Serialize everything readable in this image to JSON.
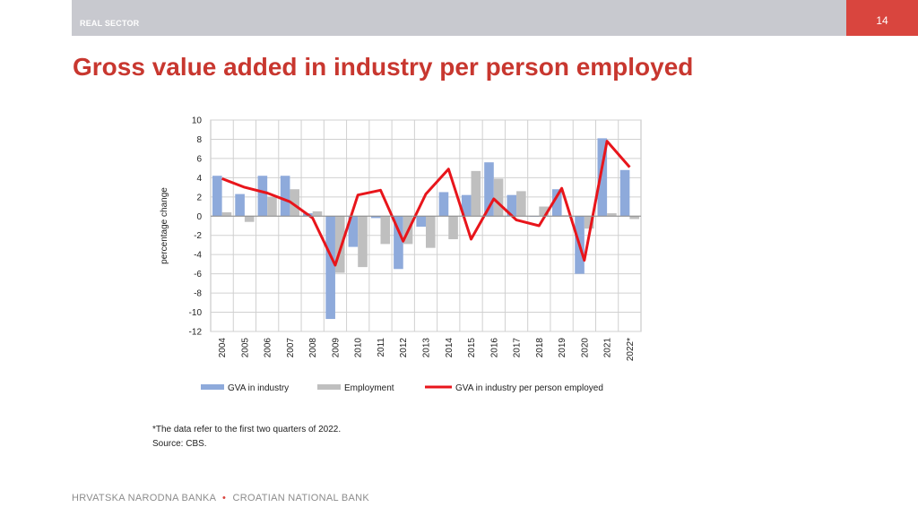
{
  "header": {
    "section_label": "REAL SECTOR",
    "page_number": "14"
  },
  "title": "Gross value added in industry per person employed",
  "chart_data": {
    "type": "bar",
    "ylabel": "percentage change",
    "xlabel": "",
    "ylim": [
      -12,
      10
    ],
    "yticks": [
      10,
      8,
      6,
      4,
      2,
      0,
      -2,
      -4,
      -6,
      -8,
      -10,
      -12
    ],
    "grid": true,
    "legend_position": "bottom",
    "categories": [
      "2004",
      "2005",
      "2006",
      "2007",
      "2008",
      "2009",
      "2010",
      "2011",
      "2012",
      "2013",
      "2014",
      "2015",
      "2016",
      "2017",
      "2018",
      "2019",
      "2020",
      "2021",
      "2022*"
    ],
    "series": [
      {
        "name": "GVA in industry",
        "kind": "bar",
        "color": "#8eaadb",
        "values": [
          4.2,
          2.3,
          4.2,
          4.2,
          0.3,
          -10.7,
          -3.2,
          -0.2,
          -5.5,
          -1.1,
          2.5,
          2.2,
          5.6,
          2.2,
          0.0,
          2.8,
          -6.0,
          8.1,
          4.8
        ]
      },
      {
        "name": "Employment",
        "kind": "bar",
        "color": "#bfbfbf",
        "values": [
          0.4,
          -0.6,
          2.0,
          2.8,
          0.5,
          -5.9,
          -5.3,
          -2.9,
          -2.9,
          -3.3,
          -2.4,
          4.7,
          3.9,
          2.6,
          1.0,
          0.1,
          -1.3,
          0.3,
          -0.3
        ]
      },
      {
        "name": "GVA in industry per person employed",
        "kind": "line",
        "color": "#e8151b",
        "values": [
          3.9,
          3.0,
          2.4,
          1.5,
          -0.2,
          -5.1,
          2.2,
          2.7,
          -2.6,
          2.3,
          4.9,
          -2.4,
          1.8,
          -0.4,
          -1.0,
          2.9,
          -4.6,
          7.8,
          5.1
        ]
      }
    ]
  },
  "notes": {
    "footnote": "*The data refer to the first two quarters of 2022.",
    "source": "Source: CBS."
  },
  "footer": {
    "left": "HRVATSKA NARODNA BANKA",
    "separator": "•",
    "right": "CROATIAN NATIONAL BANK"
  }
}
